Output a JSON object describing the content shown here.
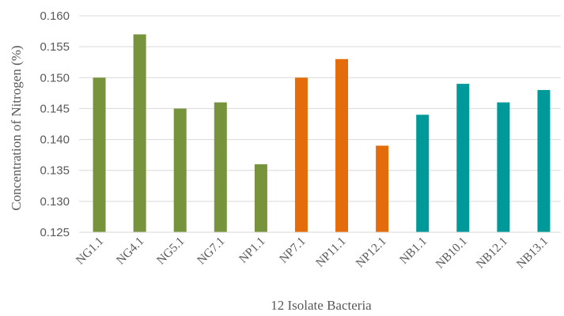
{
  "chart_data": {
    "type": "bar",
    "title": "",
    "xlabel": "12 Isolate Bacteria",
    "ylabel": "Concentration of Nitrogen (%)",
    "ylim": [
      0.125,
      0.16
    ],
    "yticks": [
      "0.125",
      "0.130",
      "0.135",
      "0.140",
      "0.145",
      "0.150",
      "0.155",
      "0.160"
    ],
    "grid": true,
    "legend": "none",
    "categories": [
      "NG1.1",
      "NG4.1",
      "NG5.1",
      "NG7.1",
      "NP1.1",
      "NP7.1",
      "NP11.1",
      "NP12.1",
      "NB1.1",
      "NB10.1",
      "NB12.1",
      "NB13.1"
    ],
    "values": [
      0.15,
      0.157,
      0.145,
      0.146,
      0.136,
      0.15,
      0.153,
      0.139,
      0.144,
      0.149,
      0.146,
      0.148
    ],
    "colors": [
      "#77933c",
      "#77933c",
      "#77933c",
      "#77933c",
      "#77933c",
      "#e46c0a",
      "#e46c0a",
      "#e46c0a",
      "#009999",
      "#009999",
      "#009999",
      "#009999"
    ]
  }
}
